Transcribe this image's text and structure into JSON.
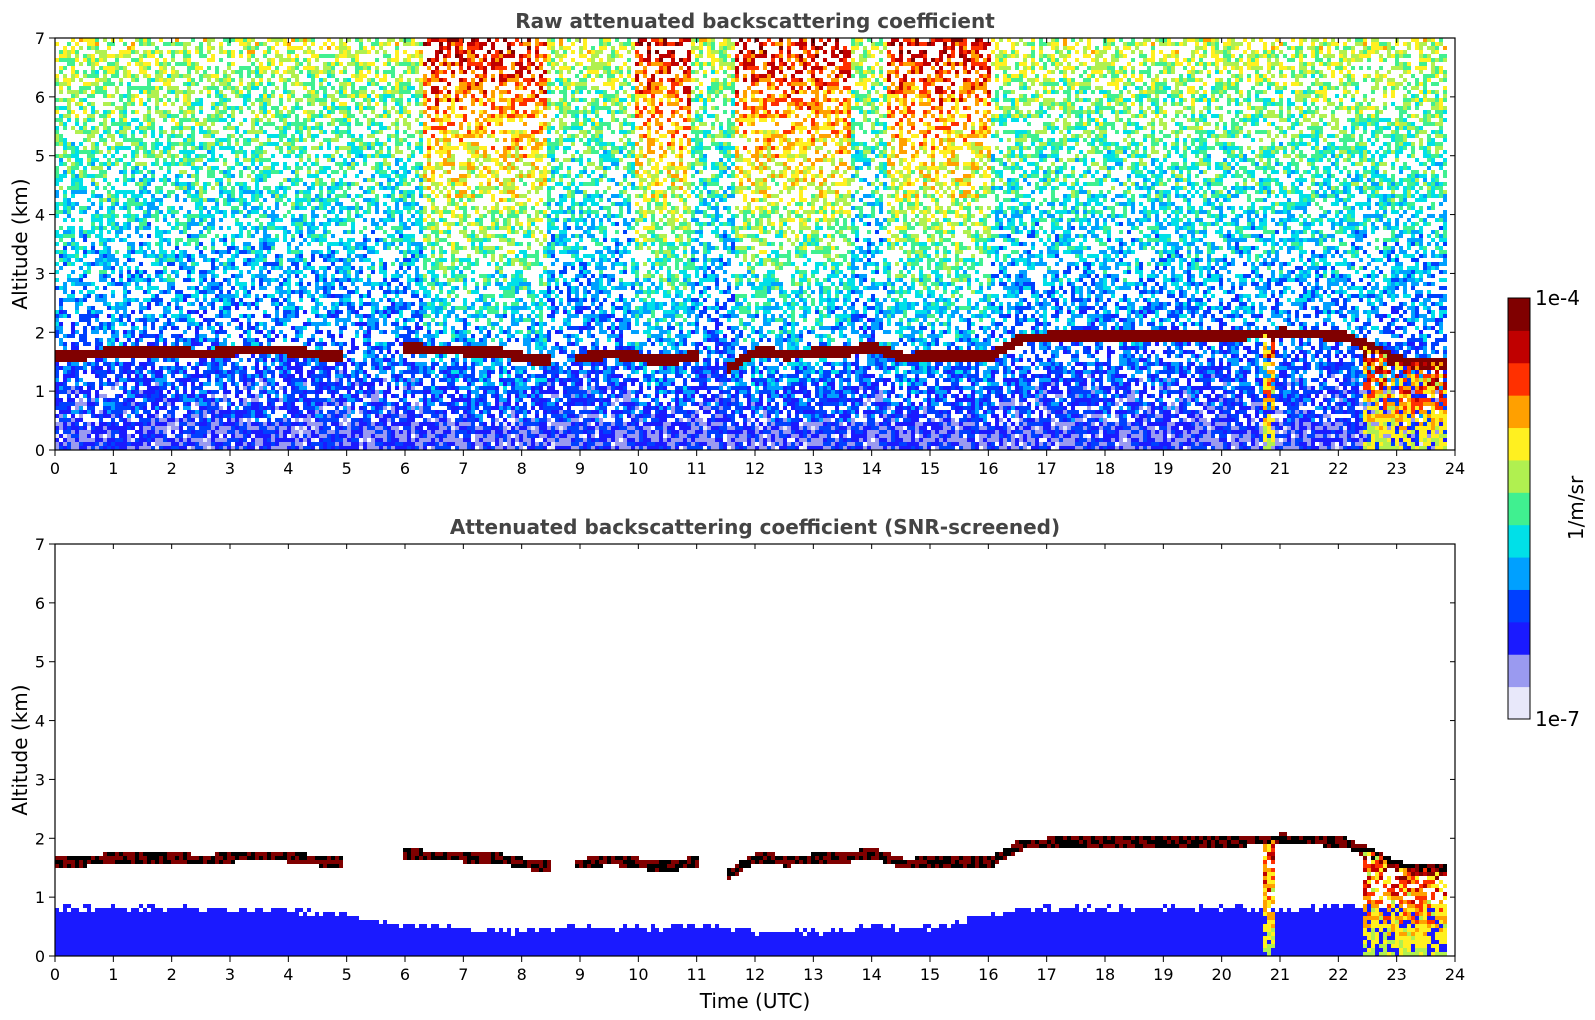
{
  "chart_data": [
    {
      "type": "heatmap",
      "title": "Raw attenuated backscattering coefficient",
      "xlabel": "",
      "ylabel": "Altitude (km)",
      "xlim": [
        0,
        24
      ],
      "ylim": [
        0,
        7
      ],
      "xticks": [
        "0",
        "1",
        "2",
        "3",
        "4",
        "5",
        "6",
        "7",
        "8",
        "9",
        "10",
        "11",
        "12",
        "13",
        "14",
        "15",
        "16",
        "17",
        "18",
        "19",
        "20",
        "21",
        "22",
        "23",
        "24"
      ],
      "yticks": [
        "0",
        "1",
        "2",
        "3",
        "4",
        "5",
        "6",
        "7"
      ],
      "noise": {
        "label": "noisy background signal, rising with altitude",
        "strong_columns_utc": [
          [
            6.3,
            8.4
          ],
          [
            9.9,
            10.9
          ],
          [
            11.6,
            13.6
          ],
          [
            14.2,
            16.0
          ]
        ]
      },
      "cloud_layer": {
        "time_utc": [
          0,
          0.5,
          1,
          1.5,
          2,
          2.5,
          3,
          3.5,
          4,
          4.5,
          5,
          6,
          6.5,
          7,
          7.5,
          8,
          8.5,
          9,
          9.5,
          10,
          10.5,
          11,
          11.5,
          12,
          12.5,
          13,
          13.5,
          14,
          14.5,
          15,
          15.5,
          16,
          16.5,
          17,
          17.5,
          18,
          18.5,
          19,
          19.5,
          20,
          20.5,
          21,
          21.5,
          22,
          22.5,
          23,
          23.5,
          23.8
        ],
        "altitude_km": [
          1.65,
          1.65,
          1.7,
          1.7,
          1.72,
          1.65,
          1.72,
          1.74,
          1.72,
          1.65,
          1.65,
          1.75,
          1.74,
          1.72,
          1.72,
          1.6,
          1.55,
          1.6,
          1.68,
          1.6,
          1.55,
          1.65,
          1.4,
          1.72,
          1.65,
          1.68,
          1.7,
          1.78,
          1.6,
          1.62,
          1.65,
          1.62,
          1.92,
          1.95,
          1.97,
          1.98,
          1.98,
          1.98,
          1.97,
          1.95,
          2.0,
          2.02,
          2.0,
          1.98,
          1.8,
          1.55,
          1.5,
          1.5
        ],
        "gaps_utc": [
          [
            4.9,
            5.9
          ],
          [
            8.5,
            8.9
          ],
          [
            11.0,
            11.5
          ]
        ]
      },
      "precipitation_utc": [
        [
          20.7,
          20.9
        ],
        [
          22.4,
          23.8
        ]
      ]
    },
    {
      "type": "heatmap",
      "title": "Attenuated backscattering coefficient (SNR-screened)",
      "xlabel": "Time (UTC)",
      "ylabel": "Altitude (km)",
      "xlim": [
        0,
        24
      ],
      "ylim": [
        0,
        7
      ],
      "xticks": [
        "0",
        "1",
        "2",
        "3",
        "4",
        "5",
        "6",
        "7",
        "8",
        "9",
        "10",
        "11",
        "12",
        "13",
        "14",
        "15",
        "16",
        "17",
        "18",
        "19",
        "20",
        "21",
        "22",
        "23",
        "24"
      ],
      "yticks": [
        "0",
        "1",
        "2",
        "3",
        "4",
        "5",
        "6",
        "7"
      ],
      "boundary_layer_top": {
        "time_utc": [
          0,
          1,
          2,
          3,
          4,
          5,
          6,
          7,
          8,
          9,
          10,
          11,
          12,
          13,
          14,
          15,
          16,
          17,
          18,
          19,
          20,
          21,
          22,
          23,
          23.8
        ],
        "altitude_km": [
          0.85,
          0.85,
          0.85,
          0.82,
          0.8,
          0.72,
          0.55,
          0.5,
          0.45,
          0.55,
          0.5,
          0.55,
          0.45,
          0.45,
          0.55,
          0.5,
          0.75,
          0.85,
          0.85,
          0.85,
          0.85,
          0.8,
          0.9,
          0.9,
          0.9
        ]
      }
    }
  ],
  "colorbar": {
    "label": "1/m/sr",
    "max_label": "1e-4",
    "min_label": "1e-7",
    "colors": [
      "#e8e8fa",
      "#9a9af0",
      "#1a1aff",
      "#0040ff",
      "#00a0ff",
      "#00e0e8",
      "#40f090",
      "#b0f050",
      "#fff020",
      "#ffa000",
      "#ff3000",
      "#c00000",
      "#800000"
    ]
  }
}
